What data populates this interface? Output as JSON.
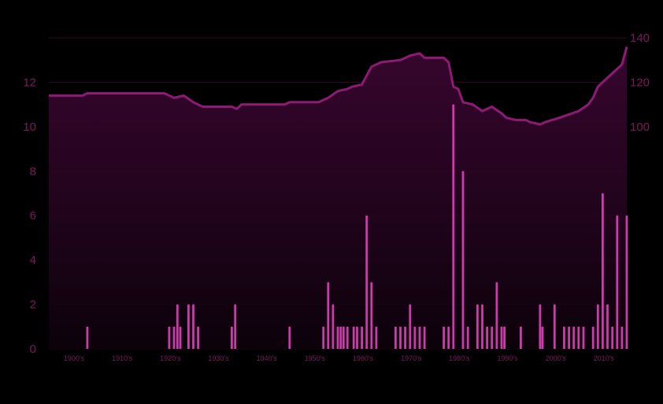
{
  "chart_data": {
    "type": "bar+line",
    "title": "",
    "xlabel": "",
    "ylabel": "",
    "x_tick_labels": [
      "1900's",
      "1910's",
      "1920's",
      "1930's",
      "1940's",
      "1950's",
      "1960's",
      "1970's",
      "1980's",
      "1990's",
      "2000's",
      "2010's"
    ],
    "x_range": [
      1900,
      2020
    ],
    "left_axis": {
      "range": [
        0,
        14
      ],
      "ticks": [
        0,
        2,
        4,
        6,
        8,
        10,
        12
      ]
    },
    "right_axis": {
      "range": [
        0,
        140
      ],
      "ticks": [
        100,
        120,
        140
      ]
    },
    "grid": true,
    "colors": {
      "background": "#000000",
      "bar": "#d63fb4",
      "line": "#8e1a74",
      "area_top": "#3a0630",
      "grid": "#2e0b26",
      "tick_text": "#7a1a5e"
    },
    "bar_series": {
      "axis": "left",
      "points": [
        [
          1908,
          1
        ],
        [
          1925,
          1
        ],
        [
          1926,
          1
        ],
        [
          1926.7,
          2
        ],
        [
          1927.3,
          1
        ],
        [
          1929,
          2
        ],
        [
          1930,
          2
        ],
        [
          1931,
          1
        ],
        [
          1938,
          1
        ],
        [
          1938.7,
          2
        ],
        [
          1950,
          1
        ],
        [
          1957,
          1
        ],
        [
          1958,
          3
        ],
        [
          1959,
          2
        ],
        [
          1960,
          1
        ],
        [
          1960.6,
          1
        ],
        [
          1961.2,
          1
        ],
        [
          1962,
          1
        ],
        [
          1963.3,
          1
        ],
        [
          1964,
          1
        ],
        [
          1965,
          1
        ],
        [
          1966,
          6
        ],
        [
          1967,
          3
        ],
        [
          1968,
          1
        ],
        [
          1972,
          1
        ],
        [
          1973,
          1
        ],
        [
          1974,
          1
        ],
        [
          1975,
          2
        ],
        [
          1976,
          1
        ],
        [
          1977,
          1
        ],
        [
          1978,
          1
        ],
        [
          1982,
          1
        ],
        [
          1983,
          1
        ],
        [
          1984,
          11
        ],
        [
          1986,
          8
        ],
        [
          1987,
          1
        ],
        [
          1989,
          2
        ],
        [
          1990,
          2
        ],
        [
          1991,
          1
        ],
        [
          1992,
          1
        ],
        [
          1993,
          3
        ],
        [
          1994,
          1
        ],
        [
          1994.6,
          1
        ],
        [
          1998,
          1
        ],
        [
          2002,
          2
        ],
        [
          2002.5,
          1
        ],
        [
          2005,
          2
        ],
        [
          2007,
          1
        ],
        [
          2008,
          1
        ],
        [
          2009,
          1
        ],
        [
          2010,
          1
        ],
        [
          2011,
          1
        ],
        [
          2013,
          1
        ],
        [
          2014,
          2
        ],
        [
          2015,
          7
        ],
        [
          2016,
          2
        ],
        [
          2017,
          1
        ],
        [
          2018,
          6
        ],
        [
          2019,
          1
        ],
        [
          2020,
          6
        ]
      ]
    },
    "line_series": {
      "axis": "right",
      "points": [
        [
          1900,
          114
        ],
        [
          1907,
          114
        ],
        [
          1908,
          115
        ],
        [
          1924,
          115
        ],
        [
          1926,
          113
        ],
        [
          1928,
          114
        ],
        [
          1930,
          111
        ],
        [
          1932,
          109
        ],
        [
          1938,
          109
        ],
        [
          1939,
          108
        ],
        [
          1940,
          110
        ],
        [
          1949,
          110
        ],
        [
          1950,
          111
        ],
        [
          1956,
          111
        ],
        [
          1958,
          113
        ],
        [
          1960,
          116
        ],
        [
          1962,
          117
        ],
        [
          1963,
          118
        ],
        [
          1965,
          119
        ],
        [
          1966,
          123
        ],
        [
          1967,
          127
        ],
        [
          1969,
          129
        ],
        [
          1973,
          130
        ],
        [
          1975,
          132
        ],
        [
          1977,
          133
        ],
        [
          1978,
          131
        ],
        [
          1982,
          131
        ],
        [
          1983,
          129
        ],
        [
          1984,
          118
        ],
        [
          1985,
          117
        ],
        [
          1986,
          111
        ],
        [
          1988,
          110
        ],
        [
          1990,
          107
        ],
        [
          1991,
          108
        ],
        [
          1992,
          109
        ],
        [
          1994,
          106
        ],
        [
          1995,
          104
        ],
        [
          1997,
          103
        ],
        [
          1999,
          103
        ],
        [
          2000,
          102
        ],
        [
          2002,
          101
        ],
        [
          2003,
          102
        ],
        [
          2006,
          104
        ],
        [
          2010,
          107
        ],
        [
          2012,
          110
        ],
        [
          2013,
          113
        ],
        [
          2014,
          118
        ],
        [
          2015,
          120
        ],
        [
          2016,
          122
        ],
        [
          2017,
          124
        ],
        [
          2018,
          126
        ],
        [
          2019,
          128
        ],
        [
          2020,
          136
        ]
      ]
    }
  }
}
